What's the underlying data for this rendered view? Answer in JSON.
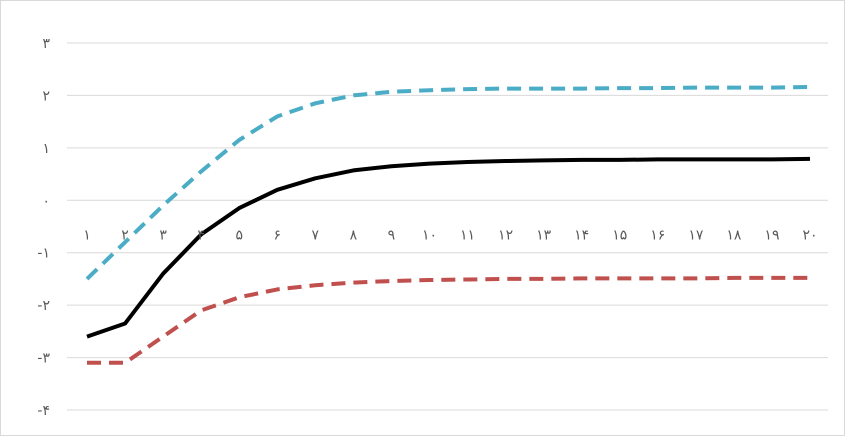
{
  "chart_data": {
    "type": "line",
    "title": "",
    "xlabel": "",
    "ylabel": "",
    "x": [
      1,
      2,
      3,
      4,
      5,
      6,
      7,
      8,
      9,
      10,
      11,
      12,
      13,
      14,
      15,
      16,
      17,
      18,
      19,
      20
    ],
    "x_tick_labels": [
      "۱",
      "۲",
      "۳",
      "۴",
      "۵",
      "۶",
      "۷",
      "۸",
      "۹",
      "۱۰",
      "۱۱",
      "۱۲",
      "۱۳",
      "۱۴",
      "۱۵",
      "۱۶",
      "۱۷",
      "۱۸",
      "۱۹",
      "۲۰"
    ],
    "y_tick_labels": [
      "۳",
      "۲",
      "۱",
      "۰",
      "-۱",
      "-۲",
      "-۳",
      "-۴"
    ],
    "ylim": [
      -4,
      3
    ],
    "grid": true,
    "legend": "none",
    "series": [
      {
        "style": "dashed",
        "color": "#4bacc6",
        "values": [
          -1.5,
          -0.8,
          -0.1,
          0.55,
          1.15,
          1.6,
          1.85,
          2.0,
          2.07,
          2.1,
          2.12,
          2.13,
          2.13,
          2.13,
          2.14,
          2.14,
          2.15,
          2.15,
          2.15,
          2.16
        ]
      },
      {
        "style": "solid",
        "color": "#000000",
        "values": [
          -2.6,
          -2.35,
          -1.4,
          -0.65,
          -0.15,
          0.2,
          0.42,
          0.57,
          0.65,
          0.7,
          0.73,
          0.75,
          0.76,
          0.77,
          0.77,
          0.78,
          0.78,
          0.78,
          0.78,
          0.79
        ]
      },
      {
        "style": "dashed",
        "color": "#c0504d",
        "values": [
          -3.1,
          -3.1,
          -2.6,
          -2.1,
          -1.85,
          -1.7,
          -1.62,
          -1.57,
          -1.54,
          -1.52,
          -1.51,
          -1.5,
          -1.5,
          -1.49,
          -1.49,
          -1.49,
          -1.49,
          -1.48,
          -1.48,
          -1.48
        ]
      }
    ]
  }
}
